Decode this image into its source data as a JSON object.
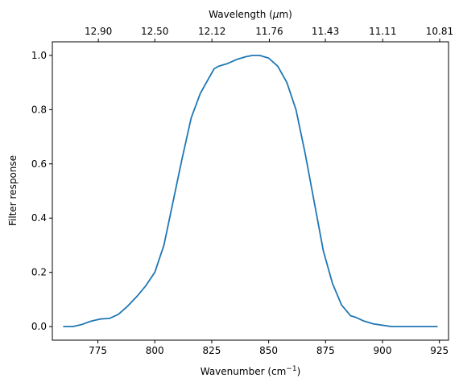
{
  "chart_data": {
    "type": "line",
    "title": "",
    "xlabel": "Wavenumber (cm",
    "xlabel_sup": "−1",
    "xlabel_close": ")",
    "xlabel_top": "Wavelength (",
    "xlabel_top_mu": "μ",
    "xlabel_top_rest": "m)",
    "ylabel": "Filter response",
    "xlim": [
      755,
      929
    ],
    "ylim": [
      -0.05,
      1.05
    ],
    "grid": false,
    "x_ticks": [
      775,
      800,
      825,
      850,
      875,
      900,
      925
    ],
    "y_ticks": [
      0.0,
      0.2,
      0.4,
      0.6,
      0.8,
      1.0
    ],
    "y_tick_labels": [
      "0.0",
      "0.2",
      "0.4",
      "0.6",
      "0.8",
      "1.0"
    ],
    "top_ticks": [
      {
        "wavenumber": 775.2,
        "label": "12.90"
      },
      {
        "wavenumber": 800.0,
        "label": "12.50"
      },
      {
        "wavenumber": 825.1,
        "label": "12.12"
      },
      {
        "wavenumber": 850.3,
        "label": "11.76"
      },
      {
        "wavenumber": 874.9,
        "label": "11.43"
      },
      {
        "wavenumber": 900.1,
        "label": "11.11"
      },
      {
        "wavenumber": 925.1,
        "label": "10.81"
      }
    ],
    "color": "#1f77b4",
    "series": [
      {
        "x": [
          760,
          764,
          768,
          772,
          776,
          780,
          784,
          788,
          792,
          796,
          800,
          804,
          808,
          812,
          816,
          820,
          822,
          826,
          828,
          832,
          836,
          840,
          843,
          846,
          850,
          854,
          858,
          862,
          866,
          870,
          874,
          878,
          882,
          886,
          888,
          892,
          896,
          900,
          904,
          910,
          916,
          924
        ],
        "y": [
          0.0,
          0.0,
          0.008,
          0.02,
          0.028,
          0.03,
          0.045,
          0.075,
          0.11,
          0.15,
          0.2,
          0.3,
          0.46,
          0.62,
          0.77,
          0.86,
          0.89,
          0.95,
          0.96,
          0.97,
          0.985,
          0.995,
          1.0,
          1.0,
          0.99,
          0.96,
          0.9,
          0.8,
          0.64,
          0.46,
          0.28,
          0.16,
          0.08,
          0.04,
          0.035,
          0.02,
          0.01,
          0.005,
          0.0,
          0.0,
          0.0,
          0.0
        ]
      }
    ]
  }
}
